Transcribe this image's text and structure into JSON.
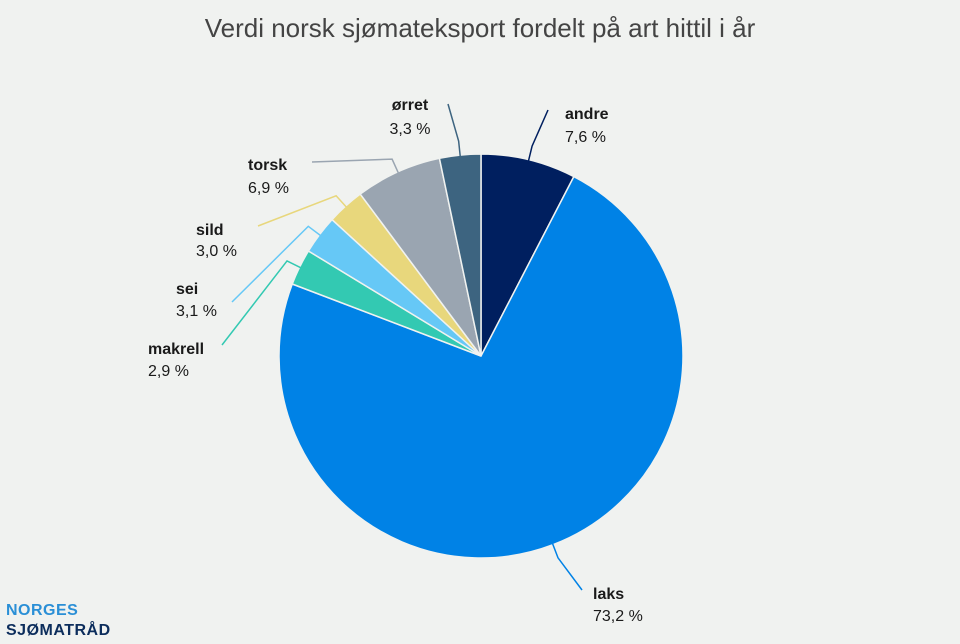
{
  "chart_data": {
    "type": "pie",
    "title": "Verdi norsk sjømateksport fordelt på art hittil i år",
    "categories": [
      "andre",
      "laks",
      "makrell",
      "sei",
      "sild",
      "torsk",
      "ørret"
    ],
    "values": [
      7.6,
      73.2,
      2.9,
      3.1,
      3.0,
      6.9,
      3.3
    ],
    "value_labels": [
      "7,6 %",
      "73,2 %",
      "2,9 %",
      "3,1 %",
      "3,0 %",
      "6,9 %",
      "3,3 %"
    ],
    "colors": [
      "#001f5f",
      "#0082e6",
      "#33c9b2",
      "#66c8f6",
      "#e8d77c",
      "#9aa5b1",
      "#3d6480"
    ]
  },
  "logo": {
    "line1": "NORGES",
    "line2": "SJØMATRÅD"
  }
}
